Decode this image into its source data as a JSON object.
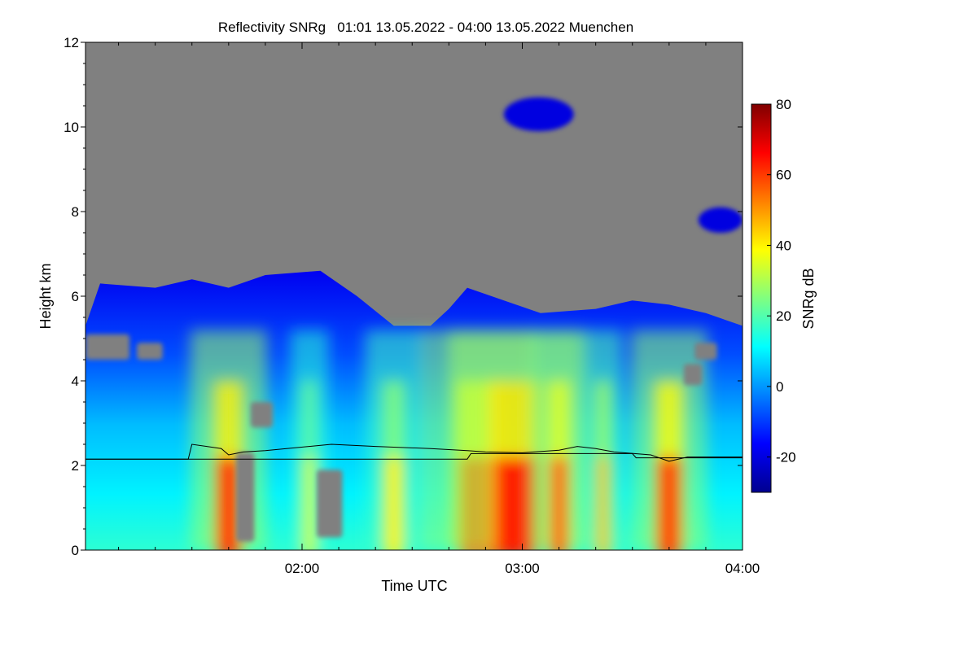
{
  "chart_data": {
    "type": "heatmap",
    "title": "Reflectivity SNRg   01:01 13.05.2022 - 04:00 13.05.2022 Muenchen",
    "xlabel": "Time UTC",
    "ylabel": "Height km",
    "x_range": [
      "01:01",
      "04:00"
    ],
    "x_ticks": [
      "02:00",
      "03:00",
      "04:00"
    ],
    "ylim": [
      0,
      12
    ],
    "y_ticks": [
      "0",
      "2",
      "4",
      "6",
      "8",
      "10",
      "12"
    ],
    "colorbar": {
      "label": "SNRg dB",
      "range": [
        -30,
        80
      ],
      "ticks": [
        "-20",
        "0",
        "20",
        "40",
        "60",
        "80"
      ]
    },
    "no_signal_color": "#808080",
    "colormap": [
      "#00008f",
      "#0000ff",
      "#0080ff",
      "#00ffff",
      "#80ff80",
      "#ffff00",
      "#ff8000",
      "#ff0000",
      "#800000"
    ],
    "cloud_top_km": [
      [
        "01:01",
        5.3
      ],
      [
        "01:05",
        6.3
      ],
      [
        "01:20",
        6.2
      ],
      [
        "01:30",
        6.4
      ],
      [
        "01:40",
        6.2
      ],
      [
        "01:50",
        6.5
      ],
      [
        "02:05",
        6.6
      ],
      [
        "02:15",
        6.0
      ],
      [
        "02:25",
        5.3
      ],
      [
        "02:35",
        5.3
      ],
      [
        "02:40",
        5.7
      ],
      [
        "02:45",
        6.2
      ],
      [
        "02:55",
        5.9
      ],
      [
        "03:05",
        5.6
      ],
      [
        "03:20",
        5.7
      ],
      [
        "03:30",
        5.9
      ],
      [
        "03:40",
        5.8
      ],
      [
        "03:50",
        5.6
      ],
      [
        "04:00",
        5.3
      ]
    ],
    "gap_regions": [
      {
        "t0": "01:01",
        "t1": "01:13",
        "h0": 4.5,
        "h1": 5.1
      },
      {
        "t0": "01:15",
        "t1": "01:22",
        "h0": 4.5,
        "h1": 4.9
      },
      {
        "t0": "01:42",
        "t1": "01:47",
        "h0": 0.2,
        "h1": 2.3
      },
      {
        "t0": "01:46",
        "t1": "01:52",
        "h0": 2.9,
        "h1": 3.5
      },
      {
        "t0": "02:04",
        "t1": "02:11",
        "h0": 0.3,
        "h1": 1.9
      },
      {
        "t0": "03:44",
        "t1": "03:49",
        "h0": 3.9,
        "h1": 4.4
      },
      {
        "t0": "03:47",
        "t1": "03:53",
        "h0": 4.5,
        "h1": 4.9
      }
    ],
    "precip_columns": [
      {
        "t": "01:40",
        "width_min": 8,
        "peak_dB": 62
      },
      {
        "t": "02:02",
        "width_min": 4,
        "peak_dB": 35
      },
      {
        "t": "02:25",
        "width_min": 6,
        "peak_dB": 40
      },
      {
        "t": "02:48",
        "width_min": 12,
        "peak_dB": 58
      },
      {
        "t": "02:58",
        "width_min": 14,
        "peak_dB": 64
      },
      {
        "t": "03:10",
        "width_min": 6,
        "peak_dB": 56
      },
      {
        "t": "03:22",
        "width_min": 4,
        "peak_dB": 45
      },
      {
        "t": "03:40",
        "width_min": 8,
        "peak_dB": 60
      }
    ],
    "upper_cloud_patches": [
      {
        "t0": "02:55",
        "t1": "03:14",
        "h0": 9.9,
        "h1": 10.7,
        "dB": -20
      },
      {
        "t0": "03:48",
        "t1": "04:00",
        "h0": 7.5,
        "h1": 8.1,
        "dB": -20
      }
    ],
    "melting_layer_km": [
      [
        "01:01",
        2.15
      ],
      [
        "01:29",
        2.15
      ],
      [
        "01:30",
        2.5
      ],
      [
        "01:38",
        2.4
      ],
      [
        "01:40",
        2.25
      ],
      [
        "01:44",
        2.32
      ],
      [
        "01:50",
        2.35
      ],
      [
        "02:08",
        2.5
      ],
      [
        "02:20",
        2.45
      ],
      [
        "02:35",
        2.4
      ],
      [
        "02:45",
        2.35
      ],
      [
        "02:50",
        2.32
      ],
      [
        "03:00",
        2.3
      ],
      [
        "03:10",
        2.36
      ],
      [
        "03:15",
        2.45
      ],
      [
        "03:20",
        2.4
      ],
      [
        "03:25",
        2.32
      ],
      [
        "03:35",
        2.25
      ],
      [
        "03:40",
        2.1
      ],
      [
        "03:45",
        2.2
      ],
      [
        "04:00",
        2.2
      ]
    ],
    "melting_layer_lower_km": [
      [
        "01:01",
        2.15
      ],
      [
        "02:45",
        2.15
      ],
      [
        "02:46",
        2.28
      ],
      [
        "03:30",
        2.28
      ],
      [
        "03:31",
        2.18
      ],
      [
        "04:00",
        2.18
      ]
    ]
  }
}
